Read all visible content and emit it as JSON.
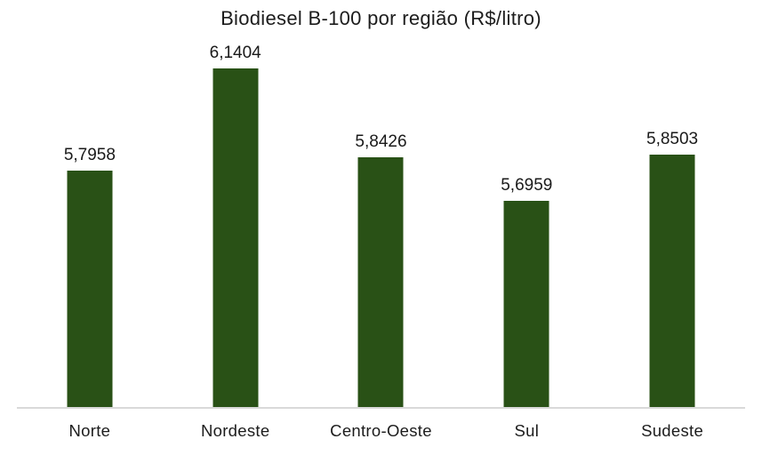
{
  "chart_data": {
    "type": "bar",
    "title": "Biodiesel B-100 por região (R$/litro)",
    "categories": [
      "Norte",
      "Nordeste",
      "Centro-Oeste",
      "Sul",
      "Sudeste"
    ],
    "values": [
      5.7958,
      6.1404,
      5.8426,
      5.6959,
      5.8503
    ],
    "value_labels": [
      "5,7958",
      "6,1404",
      "5,8426",
      "5,6959",
      "5,8503"
    ],
    "xlabel": "",
    "ylabel": "",
    "ylim": [
      5.0,
      6.24
    ],
    "grid": false,
    "legend": false,
    "y_axis_visible": false,
    "bar_color": "#295116",
    "axis_line_color": "#d9d9d9",
    "text_color": "#1c1c1c"
  }
}
